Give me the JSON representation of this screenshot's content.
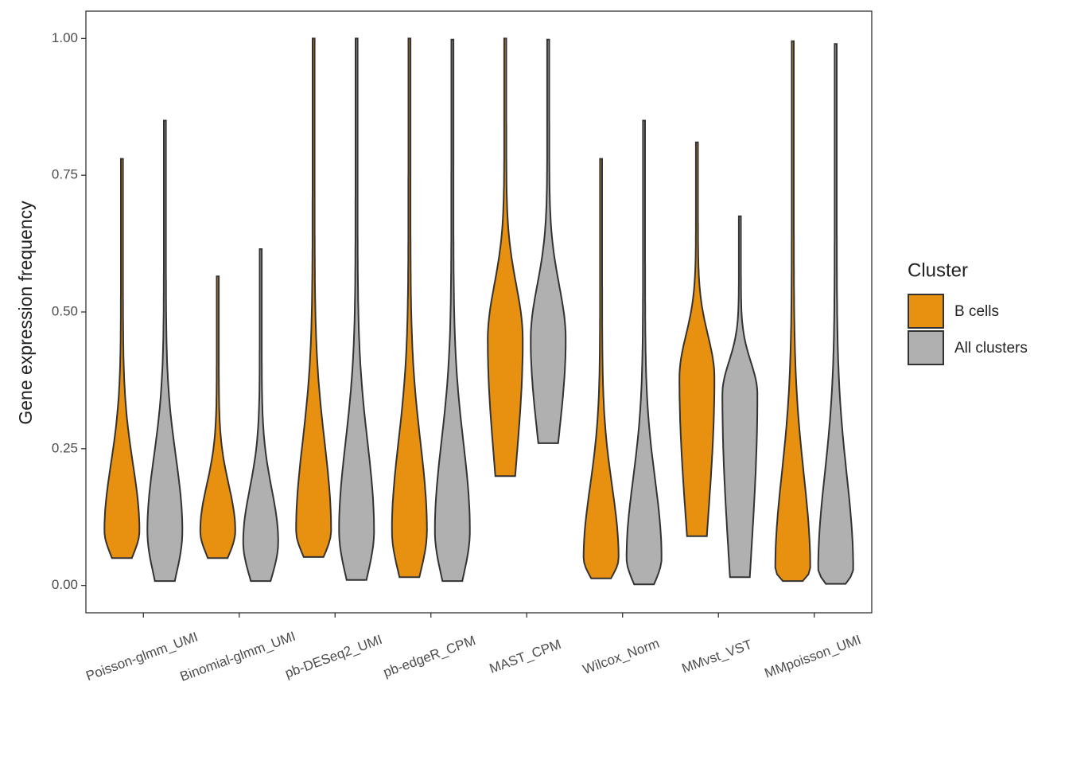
{
  "chart_data": {
    "type": "violin",
    "y_label": "Gene expression frequency",
    "categories": [
      "Poisson-glmm_UMI",
      "Binomial-glmm_UMI",
      "pb-DESeq2_UMI",
      "pb-edgeR_CPM",
      "MAST_CPM",
      "Wilcox_Norm",
      "MMvst_VST",
      "MMpoisson_UMI"
    ],
    "legend_title": "Cluster",
    "series": [
      {
        "name": "B cells",
        "color": "#e8900f",
        "min": [
          0.05,
          0.05,
          0.052,
          0.015,
          0.2,
          0.013,
          0.09,
          0.008
        ],
        "mode": [
          0.1,
          0.1,
          0.1,
          0.1,
          0.45,
          0.05,
          0.38,
          0.03
        ],
        "max": [
          0.78,
          0.565,
          1.0,
          1.0,
          1.0,
          0.78,
          0.81,
          0.995
        ]
      },
      {
        "name": "All clusters",
        "color": "#b0b0b0",
        "min": [
          0.008,
          0.008,
          0.01,
          0.008,
          0.26,
          0.002,
          0.015,
          0.003
        ],
        "mode": [
          0.1,
          0.08,
          0.1,
          0.1,
          0.45,
          0.05,
          0.35,
          0.03
        ],
        "max": [
          0.85,
          0.615,
          1.0,
          0.998,
          0.998,
          0.85,
          0.675,
          0.99
        ]
      }
    ],
    "ylim": [
      -0.05,
      1.05
    ],
    "yticks": [
      {
        "value": 0,
        "label": "0.00"
      },
      {
        "value": 0.25,
        "label": "0.25"
      },
      {
        "value": 0.5,
        "label": "0.50"
      },
      {
        "value": 0.75,
        "label": "0.75"
      },
      {
        "value": 1,
        "label": "1.00"
      }
    ],
    "legend_position": "right"
  }
}
